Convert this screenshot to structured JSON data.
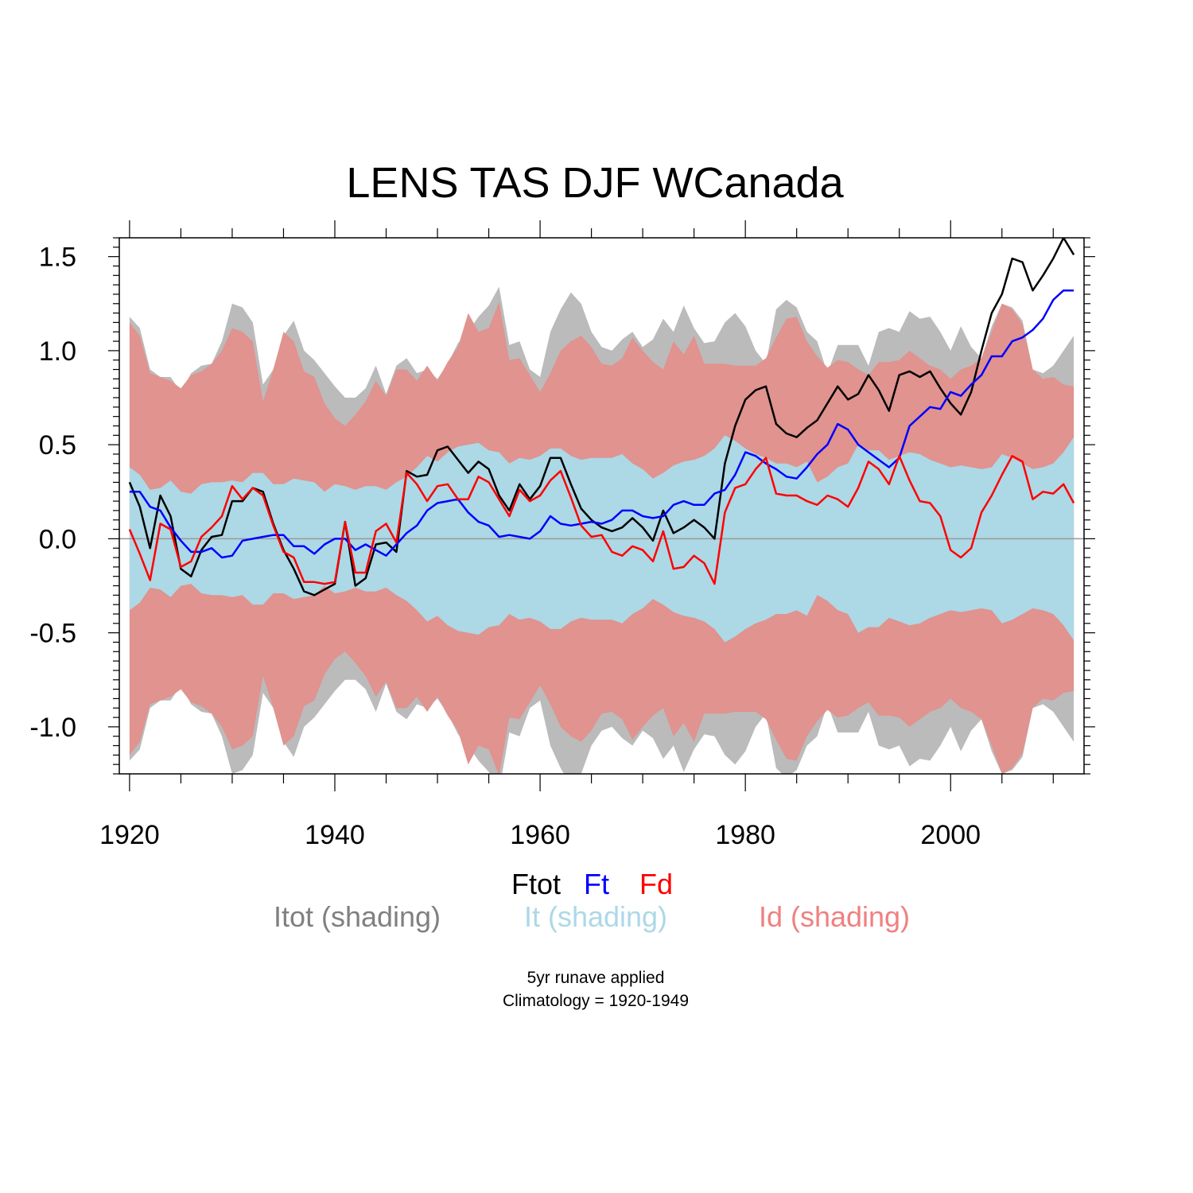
{
  "chart_data": {
    "type": "line",
    "title": "LENS TAS DJF WCanada",
    "xlabel": "",
    "ylabel": "",
    "xlim": [
      1919,
      2013
    ],
    "ylim": [
      -1.25,
      1.6
    ],
    "x_ticks": [
      1920,
      1940,
      1960,
      1980,
      2000
    ],
    "x_tick_labels": [
      "1920",
      "1940",
      "1960",
      "1980",
      "2000"
    ],
    "y_ticks": [
      -1.0,
      -0.5,
      0.0,
      0.5,
      1.0,
      1.5
    ],
    "y_tick_labels": [
      "-1.0",
      "-0.5",
      "0.0",
      "0.5",
      "1.0",
      "1.5"
    ],
    "grid": false,
    "zero_line": true,
    "years": [
      1920,
      1921,
      1922,
      1923,
      1924,
      1925,
      1926,
      1927,
      1928,
      1929,
      1930,
      1931,
      1932,
      1933,
      1934,
      1935,
      1936,
      1937,
      1938,
      1939,
      1940,
      1941,
      1942,
      1943,
      1944,
      1945,
      1946,
      1947,
      1948,
      1949,
      1950,
      1951,
      1952,
      1953,
      1954,
      1955,
      1956,
      1957,
      1958,
      1959,
      1960,
      1961,
      1962,
      1963,
      1964,
      1965,
      1966,
      1967,
      1968,
      1969,
      1970,
      1971,
      1972,
      1973,
      1974,
      1975,
      1976,
      1977,
      1978,
      1979,
      1980,
      1981,
      1982,
      1983,
      1984,
      1985,
      1986,
      1987,
      1988,
      1989,
      1990,
      1991,
      1992,
      1993,
      1994,
      1995,
      1996,
      1997,
      1998,
      1999,
      2000,
      2001,
      2002,
      2003,
      2004,
      2005,
      2006,
      2007,
      2008,
      2009,
      2010,
      2011,
      2012
    ],
    "series": [
      {
        "name": "Ftot",
        "color": "#000000",
        "values": [
          0.3,
          0.17,
          -0.05,
          0.23,
          0.12,
          -0.16,
          -0.2,
          -0.06,
          0.01,
          0.02,
          0.2,
          0.2,
          0.27,
          0.25,
          0.08,
          -0.06,
          -0.16,
          -0.28,
          -0.3,
          -0.27,
          -0.24,
          0.09,
          -0.25,
          -0.21,
          -0.03,
          -0.02,
          -0.07,
          0.36,
          0.33,
          0.34,
          0.47,
          0.49,
          0.42,
          0.35,
          0.41,
          0.37,
          0.23,
          0.15,
          0.29,
          0.21,
          0.28,
          0.43,
          0.43,
          0.29,
          0.16,
          0.1,
          0.06,
          0.04,
          0.06,
          0.11,
          0.06,
          -0.01,
          0.15,
          0.03,
          0.06,
          0.1,
          0.06,
          0.0,
          0.4,
          0.6,
          0.74,
          0.79,
          0.81,
          0.61,
          0.56,
          0.54,
          0.59,
          0.63,
          0.72,
          0.81,
          0.74,
          0.77,
          0.87,
          0.79,
          0.68,
          0.87,
          0.89,
          0.86,
          0.89,
          0.8,
          0.72,
          0.66,
          0.78,
          1.0,
          1.2,
          1.3,
          1.49,
          1.47,
          1.32,
          1.4,
          1.49,
          1.6,
          1.51
        ]
      },
      {
        "name": "Ft",
        "color": "#0000ff",
        "values": [
          0.25,
          0.25,
          0.17,
          0.15,
          0.06,
          -0.01,
          -0.07,
          -0.07,
          -0.05,
          -0.1,
          -0.09,
          -0.01,
          0.0,
          0.01,
          0.02,
          0.02,
          -0.04,
          -0.04,
          -0.08,
          -0.03,
          0.0,
          0.0,
          -0.06,
          -0.03,
          -0.06,
          -0.09,
          -0.03,
          0.03,
          0.07,
          0.15,
          0.19,
          0.2,
          0.21,
          0.14,
          0.09,
          0.07,
          0.01,
          0.02,
          0.01,
          0.0,
          0.04,
          0.12,
          0.08,
          0.07,
          0.08,
          0.09,
          0.08,
          0.1,
          0.15,
          0.15,
          0.12,
          0.11,
          0.12,
          0.18,
          0.2,
          0.18,
          0.18,
          0.24,
          0.26,
          0.34,
          0.46,
          0.44,
          0.4,
          0.37,
          0.33,
          0.32,
          0.38,
          0.45,
          0.5,
          0.61,
          0.58,
          0.5,
          0.46,
          0.42,
          0.38,
          0.43,
          0.6,
          0.65,
          0.7,
          0.69,
          0.78,
          0.76,
          0.82,
          0.87,
          0.97,
          0.97,
          1.05,
          1.07,
          1.11,
          1.17,
          1.27,
          1.32,
          1.32
        ]
      },
      {
        "name": "Fd",
        "color": "#ff0000",
        "values": [
          0.05,
          -0.08,
          -0.22,
          0.08,
          0.05,
          -0.15,
          -0.12,
          0.01,
          0.06,
          0.12,
          0.28,
          0.21,
          0.27,
          0.23,
          0.07,
          -0.07,
          -0.1,
          -0.23,
          -0.23,
          -0.24,
          -0.23,
          0.09,
          -0.18,
          -0.18,
          0.04,
          0.08,
          -0.02,
          0.35,
          0.29,
          0.2,
          0.28,
          0.29,
          0.21,
          0.21,
          0.33,
          0.3,
          0.21,
          0.12,
          0.26,
          0.2,
          0.23,
          0.31,
          0.36,
          0.22,
          0.07,
          0.01,
          0.02,
          -0.07,
          -0.09,
          -0.04,
          -0.06,
          -0.12,
          0.04,
          -0.16,
          -0.15,
          -0.09,
          -0.13,
          -0.24,
          0.14,
          0.27,
          0.29,
          0.37,
          0.43,
          0.24,
          0.23,
          0.23,
          0.2,
          0.18,
          0.23,
          0.21,
          0.17,
          0.27,
          0.41,
          0.37,
          0.29,
          0.44,
          0.31,
          0.2,
          0.19,
          0.12,
          -0.06,
          -0.1,
          -0.05,
          0.14,
          0.23,
          0.34,
          0.44,
          0.41,
          0.21,
          0.25,
          0.24,
          0.29,
          0.19
        ]
      }
    ],
    "bands": [
      {
        "name": "Itot (shading)",
        "color": "#bbbbbb",
        "values": [
          1.18,
          1.12,
          0.9,
          0.86,
          0.86,
          0.78,
          0.88,
          0.92,
          0.93,
          1.05,
          1.25,
          1.23,
          1.15,
          0.82,
          0.9,
          1.08,
          1.16,
          1.0,
          0.95,
          0.88,
          0.81,
          0.75,
          0.75,
          0.8,
          0.92,
          0.77,
          0.92,
          0.96,
          0.88,
          0.9,
          0.85,
          0.93,
          1.04,
          1.1,
          1.18,
          1.24,
          1.34,
          1.03,
          1.05,
          0.9,
          0.86,
          1.1,
          1.22,
          1.31,
          1.25,
          1.1,
          1.02,
          1.0,
          1.06,
          1.1,
          1.02,
          1.06,
          1.17,
          1.1,
          1.24,
          1.12,
          1.04,
          1.05,
          1.15,
          1.2,
          1.13,
          1.0,
          0.93,
          1.22,
          1.27,
          1.23,
          1.1,
          1.05,
          0.88,
          1.03,
          1.03,
          1.03,
          0.92,
          1.1,
          1.12,
          1.1,
          1.21,
          1.17,
          1.18,
          1.1,
          1.0,
          1.13,
          1.02,
          0.96,
          1.13,
          1.25,
          1.23,
          1.16,
          0.9,
          0.88,
          0.92,
          1.0,
          1.08
        ]
      },
      {
        "name": "Id (shading)",
        "color": "#e0938f",
        "values": [
          1.15,
          1.08,
          0.88,
          0.86,
          0.84,
          0.8,
          0.87,
          0.89,
          0.93,
          1.0,
          1.12,
          1.1,
          1.05,
          0.73,
          0.9,
          1.1,
          1.05,
          0.89,
          0.86,
          0.72,
          0.64,
          0.6,
          0.66,
          0.73,
          0.84,
          0.76,
          0.9,
          0.9,
          0.84,
          0.92,
          0.84,
          0.94,
          1.02,
          1.2,
          1.1,
          1.12,
          1.26,
          0.95,
          0.96,
          0.87,
          0.78,
          0.88,
          1.0,
          1.05,
          1.08,
          1.02,
          0.93,
          0.92,
          0.96,
          1.07,
          1.0,
          0.94,
          0.9,
          1.05,
          0.98,
          1.08,
          0.93,
          0.93,
          0.93,
          0.92,
          0.92,
          0.92,
          0.96,
          1.07,
          1.17,
          1.18,
          1.05,
          0.97,
          0.91,
          0.95,
          0.94,
          0.9,
          0.87,
          0.94,
          0.94,
          0.95,
          1.0,
          0.96,
          0.92,
          0.9,
          0.85,
          0.9,
          0.92,
          0.96,
          1.1,
          1.25,
          1.22,
          1.14,
          0.9,
          0.85,
          0.86,
          0.82,
          0.81
        ]
      },
      {
        "name": "It (shading)",
        "color": "#add8e6",
        "values": [
          0.38,
          0.34,
          0.26,
          0.27,
          0.31,
          0.25,
          0.24,
          0.29,
          0.3,
          0.3,
          0.31,
          0.3,
          0.35,
          0.35,
          0.29,
          0.29,
          0.32,
          0.31,
          0.3,
          0.25,
          0.29,
          0.28,
          0.26,
          0.28,
          0.28,
          0.26,
          0.3,
          0.33,
          0.38,
          0.44,
          0.41,
          0.46,
          0.49,
          0.5,
          0.51,
          0.47,
          0.46,
          0.4,
          0.43,
          0.42,
          0.44,
          0.48,
          0.48,
          0.44,
          0.42,
          0.43,
          0.43,
          0.43,
          0.45,
          0.4,
          0.37,
          0.32,
          0.35,
          0.39,
          0.41,
          0.42,
          0.44,
          0.48,
          0.55,
          0.52,
          0.48,
          0.45,
          0.43,
          0.4,
          0.4,
          0.38,
          0.41,
          0.3,
          0.33,
          0.38,
          0.4,
          0.5,
          0.47,
          0.47,
          0.42,
          0.44,
          0.46,
          0.45,
          0.42,
          0.4,
          0.38,
          0.39,
          0.38,
          0.37,
          0.38,
          0.45,
          0.43,
          0.4,
          0.37,
          0.38,
          0.4,
          0.46,
          0.54
        ]
      }
    ],
    "legend": {
      "row1": [
        {
          "label": "Ftot",
          "color": "#000000"
        },
        {
          "label": "Ft",
          "color": "#0000ff"
        },
        {
          "label": "Fd",
          "color": "#ff0000"
        }
      ],
      "row2": [
        {
          "label": "Itot (shading)",
          "color": "#808080"
        },
        {
          "label": "It (shading)",
          "color": "#add8e6"
        },
        {
          "label": "Id (shading)",
          "color": "#f08080"
        }
      ]
    },
    "notes": [
      "5yr runave applied",
      "Climatology = 1920-1949"
    ]
  }
}
